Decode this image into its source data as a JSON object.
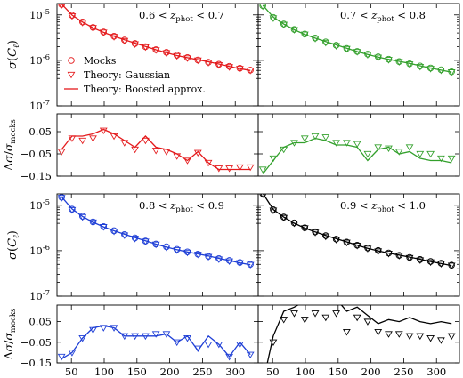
{
  "chart_data": {
    "type": "line",
    "x_ticks": [
      50,
      100,
      150,
      200,
      250,
      300
    ],
    "x_tick_labels": [
      "50",
      "100",
      "150",
      "200",
      "250",
      "300"
    ],
    "xlim": [
      28,
      335
    ],
    "sigma_ylabel": "σ(C_ℓ)",
    "sigma_ylim_log10": [
      -7,
      -4.75
    ],
    "sigma_ytick_labels": [
      "10^-5",
      "10^-6",
      "10^-7"
    ],
    "ratio_ylabel": "Δσ / σ_mocks",
    "ratio_ylim": [
      -0.15,
      0.13
    ],
    "ratio_ytick_values": [
      0.05,
      -0.05,
      -0.15
    ],
    "ratio_ytick_labels": [
      "0.05",
      "−0.05",
      "−0.15"
    ],
    "legend": {
      "position": "lower-left of top-left panel",
      "entries": [
        {
          "label": "Mocks",
          "marker": "circle"
        },
        {
          "label": "Theory:  Gaussian",
          "marker": "triangle-down"
        },
        {
          "label": "Theory: Boosted approx.",
          "marker": "line"
        }
      ]
    },
    "panels": [
      {
        "bin_label": "0.6 < z_phot < 0.7",
        "color": "#e41a1c",
        "ell": [
          35,
          51,
          67,
          83,
          99,
          115,
          131,
          147,
          163,
          179,
          195,
          211,
          227,
          243,
          259,
          275,
          291,
          307,
          323
        ],
        "mocks": [
          1.7e-05,
          9.8e-06,
          7e-06,
          5.3e-06,
          4.2e-06,
          3.4e-06,
          2.8e-06,
          2.35e-06,
          2e-06,
          1.72e-06,
          1.5e-06,
          1.3e-06,
          1.15e-06,
          1.02e-06,
          9.1e-07,
          8.2e-07,
          7.4e-07,
          6.7e-07,
          6.1e-07
        ],
        "ratio_gaussian": [
          -0.04,
          0.02,
          0.01,
          0.02,
          0.055,
          0.03,
          0.0,
          -0.03,
          0.01,
          -0.035,
          -0.04,
          -0.06,
          -0.08,
          -0.045,
          -0.09,
          -0.115,
          -0.115,
          -0.11,
          -0.11
        ],
        "ratio_boosted": [
          -0.03,
          0.03,
          0.03,
          0.04,
          0.06,
          0.04,
          0.01,
          -0.02,
          0.03,
          -0.02,
          -0.03,
          -0.05,
          -0.08,
          -0.04,
          -0.09,
          -0.12,
          -0.12,
          -0.12,
          -0.12
        ]
      },
      {
        "bin_label": "0.7 < z_phot < 0.8",
        "color": "#33a02c",
        "ell": [
          35,
          51,
          67,
          83,
          99,
          115,
          131,
          147,
          163,
          179,
          195,
          211,
          227,
          243,
          259,
          275,
          291,
          307,
          323
        ],
        "mocks": [
          1.6e-05,
          8.8e-06,
          6.3e-06,
          4.8e-06,
          3.8e-06,
          3.1e-06,
          2.55e-06,
          2.15e-06,
          1.83e-06,
          1.57e-06,
          1.37e-06,
          1.2e-06,
          1.06e-06,
          9.4e-07,
          8.4e-07,
          7.5e-07,
          6.8e-07,
          6.2e-07,
          5.6e-07
        ],
        "ratio_gaussian": [
          -0.12,
          -0.07,
          -0.03,
          0.0,
          0.02,
          0.03,
          0.025,
          0.0,
          0.0,
          -0.005,
          -0.05,
          -0.02,
          -0.025,
          -0.04,
          -0.02,
          -0.05,
          -0.05,
          -0.07,
          -0.07
        ],
        "ratio_boosted": [
          -0.14,
          -0.08,
          -0.02,
          0.0,
          0.0,
          0.02,
          0.01,
          -0.01,
          -0.01,
          -0.02,
          -0.08,
          -0.03,
          -0.02,
          -0.05,
          -0.04,
          -0.07,
          -0.08,
          -0.08,
          -0.09
        ]
      },
      {
        "bin_label": "0.8 < z_phot < 0.9",
        "color": "#1f3fd6",
        "ell": [
          35,
          51,
          67,
          83,
          99,
          115,
          131,
          147,
          163,
          179,
          195,
          211,
          227,
          243,
          259,
          275,
          291,
          307,
          323
        ],
        "mocks": [
          1.5e-05,
          8.2e-06,
          5.7e-06,
          4.3e-06,
          3.4e-06,
          2.75e-06,
          2.27e-06,
          1.91e-06,
          1.63e-06,
          1.4e-06,
          1.22e-06,
          1.07e-06,
          9.4e-07,
          8.4e-07,
          7.5e-07,
          6.7e-07,
          6.1e-07,
          5.5e-07,
          5e-07
        ],
        "ratio_gaussian": [
          -0.12,
          -0.1,
          -0.03,
          0.01,
          0.02,
          0.02,
          -0.02,
          -0.02,
          -0.02,
          -0.01,
          -0.01,
          -0.05,
          -0.03,
          -0.08,
          -0.06,
          -0.06,
          -0.12,
          -0.06,
          -0.11
        ],
        "ratio_boosted": [
          -0.13,
          -0.1,
          -0.03,
          0.02,
          0.03,
          0.02,
          -0.02,
          -0.02,
          -0.02,
          -0.02,
          -0.01,
          -0.05,
          -0.02,
          -0.09,
          -0.02,
          -0.06,
          -0.12,
          -0.05,
          -0.11
        ]
      },
      {
        "bin_label": "0.9 < z_phot < 1.0",
        "color": "#000000",
        "ell": [
          35,
          51,
          67,
          83,
          99,
          115,
          131,
          147,
          163,
          179,
          195,
          211,
          227,
          243,
          259,
          275,
          291,
          307,
          323
        ],
        "mocks": [
          1.8e-05,
          8e-06,
          5.5e-06,
          4.1e-06,
          3.2e-06,
          2.6e-06,
          2.14e-06,
          1.8e-06,
          1.54e-06,
          1.32e-06,
          1.15e-06,
          1.01e-06,
          8.9e-07,
          7.9e-07,
          7.1e-07,
          6.4e-07,
          5.8e-07,
          5.3e-07,
          4.8e-07
        ],
        "ratio_gaussian": [
          -0.2,
          -0.05,
          0.06,
          0.09,
          0.06,
          0.09,
          0.07,
          0.09,
          0.0,
          0.07,
          0.05,
          0.0,
          -0.01,
          -0.01,
          -0.02,
          -0.02,
          -0.03,
          -0.04,
          -0.02
        ],
        "ratio_boosted": [
          -0.25,
          -0.02,
          0.1,
          0.12,
          0.15,
          0.16,
          0.14,
          0.16,
          0.1,
          0.12,
          0.08,
          0.04,
          0.06,
          0.05,
          0.07,
          0.05,
          0.04,
          0.05,
          0.04
        ]
      }
    ]
  }
}
